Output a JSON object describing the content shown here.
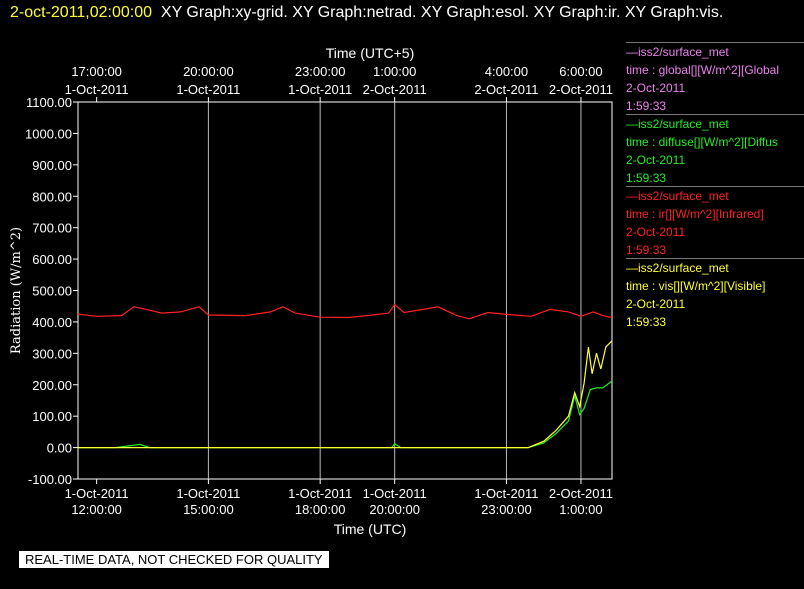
{
  "header": {
    "timestamp": "2-oct-2011,02:00:00",
    "graphs": "XY Graph:xy-grid.  XY Graph:netrad.  XY Graph:esol.  XY Graph:ir.  XY Graph:vis."
  },
  "legend": [
    {
      "name_line": "—iss2/surface_met",
      "desc": "time : global[][W/m^2][Global",
      "date": "2-Oct-2011",
      "time": "1:59:33",
      "color": "#ee82ee"
    },
    {
      "name_line": "—iss2/surface_met",
      "desc": "time : diffuse[][W/m^2][Diffus",
      "date": "2-Oct-2011",
      "time": "1:59:33",
      "color": "#22ee22"
    },
    {
      "name_line": "—iss2/surface_met",
      "desc": "time : ir[][W/m^2][Infrared]",
      "date": "2-Oct-2011",
      "time": "1:59:33",
      "color": "#ff2222"
    },
    {
      "name_line": "—iss2/surface_met",
      "desc": "time : vis[][W/m^2][Visible]",
      "date": "2-Oct-2011",
      "time": "1:59:33",
      "color": "#ffff33"
    }
  ],
  "footer_note": "REAL-TIME DATA, NOT CHECKED FOR QUALITY",
  "chart_data": {
    "type": "line",
    "ylabel": "Radiation (W/m^2)",
    "xlabel_bottom": "Time (UTC)",
    "xlabel_top": "Time (UTC+5)",
    "ylim": [
      -100,
      1100
    ],
    "y_ticks": [
      "-100.00",
      "0.00",
      "100.00",
      "200.00",
      "300.00",
      "400.00",
      "500.00",
      "600.00",
      "700.00",
      "800.00",
      "900.00",
      "1000.00",
      "1100.00"
    ],
    "x_range_utc": [
      "2011-10-01 11:30",
      "2011-10-02 01:50"
    ],
    "grid": true,
    "bottom_ticks": [
      {
        "time": "2011-10-01 12:00",
        "l1": "1-Oct-2011",
        "l2": "12:00:00"
      },
      {
        "time": "2011-10-01 15:00",
        "l1": "1-Oct-2011",
        "l2": "15:00:00"
      },
      {
        "time": "2011-10-01 18:00",
        "l1": "1-Oct-2011",
        "l2": "18:00:00"
      },
      {
        "time": "2011-10-01 20:00",
        "l1": "1-Oct-2011",
        "l2": "20:00:00"
      },
      {
        "time": "2011-10-01 23:00",
        "l1": "1-Oct-2011",
        "l2": "23:00:00"
      },
      {
        "time": "2011-10-02 01:00",
        "l1": "2-Oct-2011",
        "l2": "1:00:00"
      }
    ],
    "top_ticks": [
      {
        "time": "2011-10-01 12:00",
        "l1": "17:00:00",
        "l2": "1-Oct-2011"
      },
      {
        "time": "2011-10-01 15:00",
        "l1": "20:00:00",
        "l2": "1-Oct-2011"
      },
      {
        "time": "2011-10-01 18:00",
        "l1": "23:00:00",
        "l2": "1-Oct-2011"
      },
      {
        "time": "2011-10-01 20:00",
        "l1": "1:00:00",
        "l2": "2-Oct-2011"
      },
      {
        "time": "2011-10-01 23:00",
        "l1": "4:00:00",
        "l2": "2-Oct-2011"
      },
      {
        "time": "2011-10-02 01:00",
        "l1": "6:00:00",
        "l2": "2-Oct-2011"
      }
    ],
    "gridlines": [
      "2011-10-01 15:00",
      "2011-10-01 18:00",
      "2011-10-01 20:00",
      "2011-10-01 23:00",
      "2011-10-02 01:00"
    ],
    "series": [
      {
        "color": "#ff2222",
        "points": [
          [
            "2011-10-01 11:30",
            425
          ],
          [
            "2011-10-01 12:00",
            418
          ],
          [
            "2011-10-01 12:40",
            420
          ],
          [
            "2011-10-01 13:00",
            448
          ],
          [
            "2011-10-01 13:20",
            440
          ],
          [
            "2011-10-01 13:45",
            428
          ],
          [
            "2011-10-01 14:15",
            432
          ],
          [
            "2011-10-01 14:45",
            448
          ],
          [
            "2011-10-01 15:00",
            422
          ],
          [
            "2011-10-01 16:00",
            420
          ],
          [
            "2011-10-01 16:40",
            432
          ],
          [
            "2011-10-01 17:00",
            448
          ],
          [
            "2011-10-01 17:20",
            428
          ],
          [
            "2011-10-01 18:00",
            415
          ],
          [
            "2011-10-01 18:45",
            414
          ],
          [
            "2011-10-01 19:15",
            420
          ],
          [
            "2011-10-01 19:50",
            428
          ],
          [
            "2011-10-01 20:00",
            455
          ],
          [
            "2011-10-01 20:15",
            430
          ],
          [
            "2011-10-01 20:40",
            438
          ],
          [
            "2011-10-01 21:10",
            448
          ],
          [
            "2011-10-01 21:40",
            420
          ],
          [
            "2011-10-01 22:00",
            410
          ],
          [
            "2011-10-01 22:30",
            430
          ],
          [
            "2011-10-01 23:00",
            424
          ],
          [
            "2011-10-01 23:40",
            418
          ],
          [
            "2011-10-02 00:10",
            440
          ],
          [
            "2011-10-02 00:40",
            432
          ],
          [
            "2011-10-02 01:00",
            418
          ],
          [
            "2011-10-02 01:20",
            432
          ],
          [
            "2011-10-02 01:35",
            420
          ],
          [
            "2011-10-02 01:50",
            414
          ]
        ]
      },
      {
        "color": "#22ee22",
        "points": [
          [
            "2011-10-01 11:30",
            0
          ],
          [
            "2011-10-01 12:30",
            0
          ],
          [
            "2011-10-01 13:10",
            10
          ],
          [
            "2011-10-01 13:25",
            0
          ],
          [
            "2011-10-01 15:00",
            0
          ],
          [
            "2011-10-01 19:55",
            0
          ],
          [
            "2011-10-01 20:00",
            12
          ],
          [
            "2011-10-01 20:10",
            0
          ],
          [
            "2011-10-01 23:35",
            0
          ],
          [
            "2011-10-02 00:00",
            15
          ],
          [
            "2011-10-02 00:20",
            45
          ],
          [
            "2011-10-02 00:40",
            85
          ],
          [
            "2011-10-02 00:50",
            165
          ],
          [
            "2011-10-02 00:58",
            105
          ],
          [
            "2011-10-02 01:05",
            125
          ],
          [
            "2011-10-02 01:15",
            185
          ],
          [
            "2011-10-02 01:25",
            190
          ],
          [
            "2011-10-02 01:35",
            190
          ],
          [
            "2011-10-02 01:50",
            212
          ]
        ]
      },
      {
        "color": "#ffff33",
        "points": [
          [
            "2011-10-01 11:30",
            0
          ],
          [
            "2011-10-01 15:00",
            0
          ],
          [
            "2011-10-01 20:00",
            0
          ],
          [
            "2011-10-01 23:35",
            0
          ],
          [
            "2011-10-02 00:00",
            20
          ],
          [
            "2011-10-02 00:20",
            55
          ],
          [
            "2011-10-02 00:40",
            100
          ],
          [
            "2011-10-02 00:50",
            175
          ],
          [
            "2011-10-02 00:58",
            130
          ],
          [
            "2011-10-02 01:05",
            205
          ],
          [
            "2011-10-02 01:12",
            320
          ],
          [
            "2011-10-02 01:18",
            235
          ],
          [
            "2011-10-02 01:25",
            300
          ],
          [
            "2011-10-02 01:32",
            250
          ],
          [
            "2011-10-02 01:40",
            320
          ],
          [
            "2011-10-02 01:50",
            340
          ]
        ]
      }
    ]
  }
}
